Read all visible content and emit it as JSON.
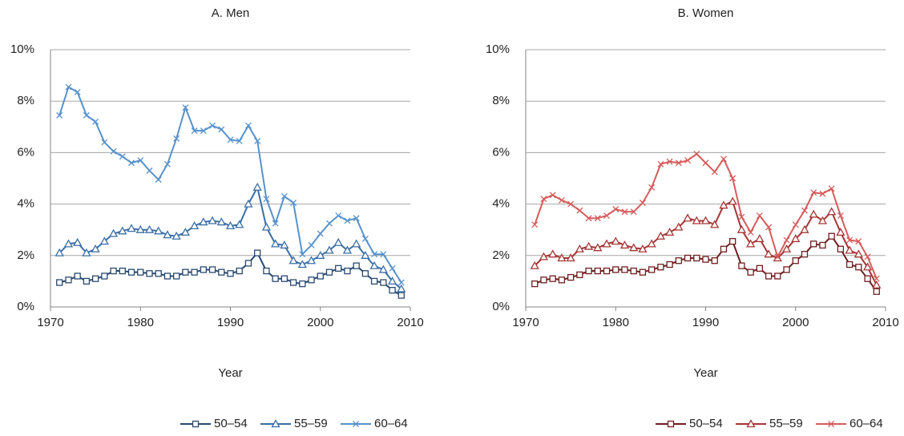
{
  "chart_data": [
    {
      "type": "line",
      "title": "A. Men",
      "xlabel": "Year",
      "x": [
        1971,
        1972,
        1973,
        1974,
        1975,
        1976,
        1977,
        1978,
        1979,
        1980,
        1981,
        1982,
        1983,
        1984,
        1985,
        1986,
        1987,
        1988,
        1989,
        1990,
        1991,
        1992,
        1993,
        1994,
        1995,
        1996,
        1997,
        1998,
        1999,
        2000,
        2001,
        2002,
        2003,
        2004,
        2005,
        2006,
        2007,
        2008,
        2009
      ],
      "xlim": [
        1970,
        2010
      ],
      "xticks": [
        1970,
        1980,
        1990,
        2000,
        2010
      ],
      "ylim": [
        0,
        10
      ],
      "yticks": [
        {
          "value": 0,
          "label": "0%"
        },
        {
          "value": 2,
          "label": "2%"
        },
        {
          "value": 4,
          "label": "4%"
        },
        {
          "value": 6,
          "label": "6%"
        },
        {
          "value": 8,
          "label": "8%"
        },
        {
          "value": 10,
          "label": "10%"
        }
      ],
      "grid": true,
      "series": [
        {
          "name": "50–54",
          "color": "#2a4a70",
          "marker": "square",
          "values": [
            0.95,
            1.05,
            1.2,
            1.0,
            1.1,
            1.2,
            1.4,
            1.4,
            1.35,
            1.35,
            1.3,
            1.3,
            1.2,
            1.2,
            1.35,
            1.35,
            1.45,
            1.45,
            1.35,
            1.3,
            1.4,
            1.7,
            2.1,
            1.4,
            1.1,
            1.1,
            0.95,
            0.9,
            1.05,
            1.2,
            1.35,
            1.5,
            1.4,
            1.6,
            1.3,
            1.0,
            0.95,
            0.65,
            0.45
          ]
        },
        {
          "name": "55–59",
          "color": "#3b6ea6",
          "marker": "triangle",
          "values": [
            2.1,
            2.45,
            2.5,
            2.1,
            2.25,
            2.55,
            2.85,
            2.95,
            3.05,
            3.0,
            3.0,
            2.95,
            2.8,
            2.75,
            2.9,
            3.15,
            3.3,
            3.35,
            3.3,
            3.15,
            3.2,
            4.0,
            4.65,
            3.1,
            2.45,
            2.4,
            1.8,
            1.65,
            1.8,
            2.0,
            2.2,
            2.5,
            2.2,
            2.45,
            2.0,
            1.6,
            1.45,
            1.0,
            0.7
          ]
        },
        {
          "name": "60–64",
          "color": "#5792cc",
          "marker": "x",
          "values": [
            7.45,
            8.55,
            8.35,
            7.45,
            7.2,
            6.4,
            6.05,
            5.85,
            5.6,
            5.7,
            5.3,
            4.95,
            5.55,
            6.55,
            7.75,
            6.85,
            6.85,
            7.05,
            6.9,
            6.5,
            6.45,
            7.05,
            6.45,
            4.2,
            3.25,
            4.3,
            4.05,
            2.05,
            2.4,
            2.85,
            3.25,
            3.55,
            3.35,
            3.45,
            2.65,
            2.05,
            2.05,
            1.5,
            0.95
          ]
        }
      ]
    },
    {
      "type": "line",
      "title": "B. Women",
      "xlabel": "Year",
      "x": [
        1971,
        1972,
        1973,
        1974,
        1975,
        1976,
        1977,
        1978,
        1979,
        1980,
        1981,
        1982,
        1983,
        1984,
        1985,
        1986,
        1987,
        1988,
        1989,
        1990,
        1991,
        1992,
        1993,
        1994,
        1995,
        1996,
        1997,
        1998,
        1999,
        2000,
        2001,
        2002,
        2003,
        2004,
        2005,
        2006,
        2007,
        2008,
        2009
      ],
      "xlim": [
        1970,
        2010
      ],
      "xticks": [
        1970,
        1980,
        1990,
        2000,
        2010
      ],
      "ylim": [
        0,
        10
      ],
      "yticks": [
        {
          "value": 0,
          "label": "0%"
        },
        {
          "value": 2,
          "label": "2%"
        },
        {
          "value": 4,
          "label": "4%"
        },
        {
          "value": 6,
          "label": "6%"
        },
        {
          "value": 8,
          "label": "8%"
        },
        {
          "value": 10,
          "label": "10%"
        }
      ],
      "grid": true,
      "series": [
        {
          "name": "50–54",
          "color": "#6e1f1f",
          "marker": "square",
          "values": [
            0.9,
            1.05,
            1.1,
            1.05,
            1.15,
            1.25,
            1.4,
            1.4,
            1.4,
            1.45,
            1.45,
            1.4,
            1.35,
            1.45,
            1.55,
            1.65,
            1.8,
            1.9,
            1.9,
            1.85,
            1.8,
            2.25,
            2.55,
            1.6,
            1.35,
            1.5,
            1.2,
            1.2,
            1.45,
            1.8,
            2.05,
            2.45,
            2.4,
            2.75,
            2.25,
            1.65,
            1.55,
            1.1,
            0.6
          ]
        },
        {
          "name": "55–59",
          "color": "#a63535",
          "marker": "triangle",
          "values": [
            1.6,
            1.95,
            2.05,
            1.9,
            1.9,
            2.25,
            2.35,
            2.3,
            2.45,
            2.55,
            2.4,
            2.3,
            2.25,
            2.45,
            2.75,
            2.9,
            3.1,
            3.45,
            3.35,
            3.35,
            3.2,
            3.95,
            4.1,
            3.0,
            2.45,
            2.65,
            2.05,
            1.9,
            2.25,
            2.65,
            3.0,
            3.6,
            3.35,
            3.7,
            2.9,
            2.2,
            2.05,
            1.55,
            0.85
          ]
        },
        {
          "name": "60–64",
          "color": "#d65c5c",
          "marker": "x",
          "values": [
            3.2,
            4.2,
            4.35,
            4.15,
            4.0,
            3.75,
            3.45,
            3.45,
            3.55,
            3.8,
            3.7,
            3.7,
            4.05,
            4.65,
            5.55,
            5.65,
            5.6,
            5.7,
            5.95,
            5.6,
            5.25,
            5.75,
            5.0,
            3.5,
            2.9,
            3.55,
            3.1,
            1.95,
            2.6,
            3.2,
            3.75,
            4.45,
            4.4,
            4.6,
            3.55,
            2.6,
            2.55,
            1.95,
            1.1
          ]
        }
      ]
    }
  ]
}
